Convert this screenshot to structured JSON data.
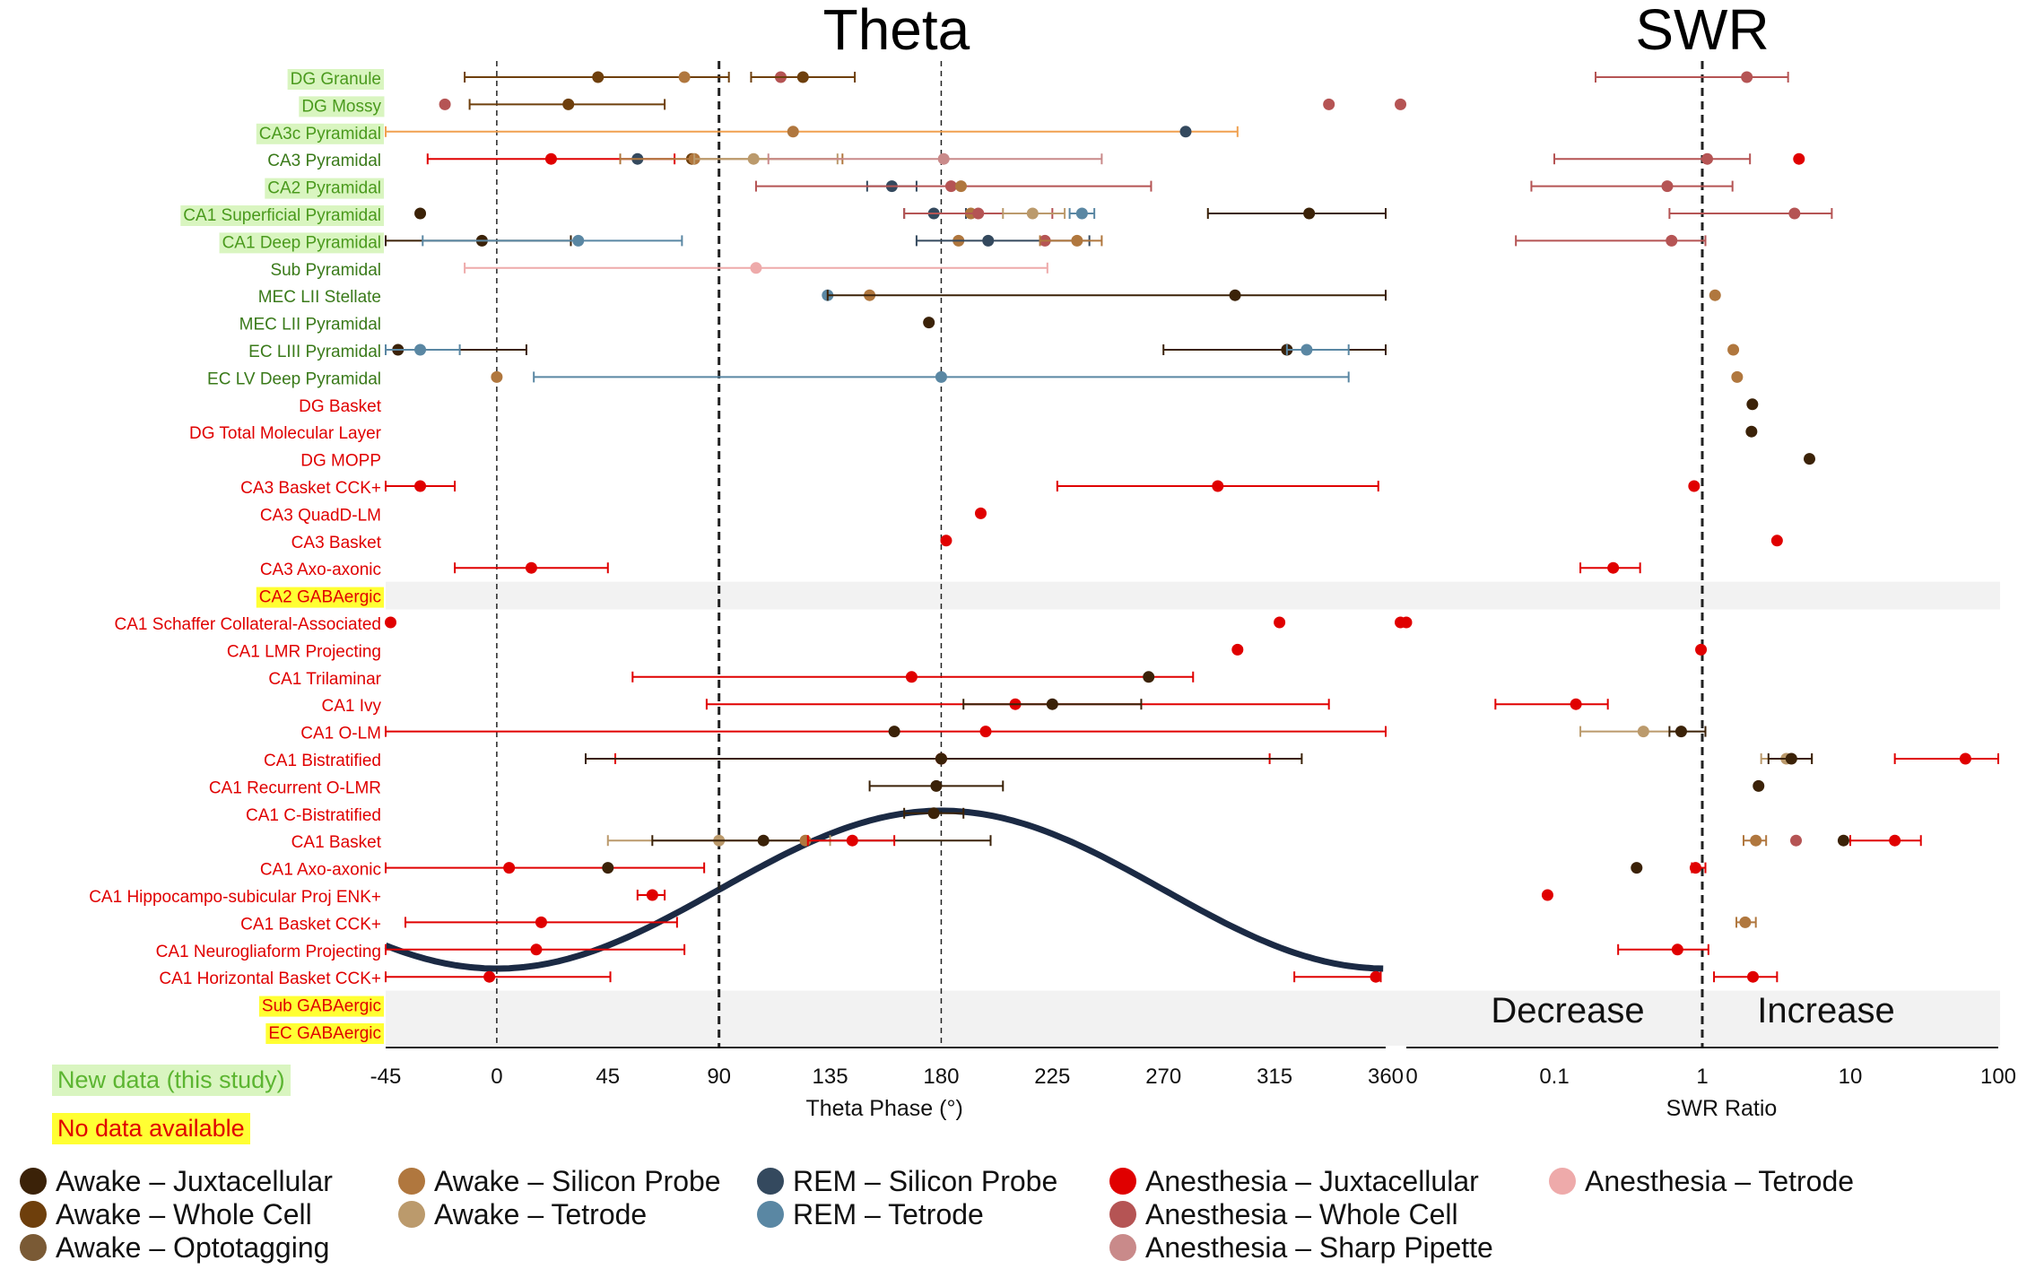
{
  "chart_data": {
    "type": "scatter",
    "panels": [
      {
        "title": "Theta",
        "xlabel": "Theta Phase (°)",
        "scale": "linear",
        "xlim": [
          -45,
          360
        ],
        "ticks": [
          "-45",
          "0",
          "45",
          "90",
          "135",
          "180",
          "225",
          "270",
          "315",
          "360"
        ],
        "reference_lines": [
          0,
          90,
          180
        ]
      },
      {
        "title": "SWR",
        "xlabel": "SWR Ratio",
        "scale": "log",
        "xlim": [
          0.01,
          100
        ],
        "ticks": [
          "0",
          "0.1",
          "1",
          "10",
          "100"
        ],
        "reference_lines": [
          1
        ],
        "annotations": [
          "Decrease",
          "Increase"
        ]
      }
    ],
    "rows": [
      {
        "label": "DG Granule",
        "category": "new"
      },
      {
        "label": "DG Mossy",
        "category": "new"
      },
      {
        "label": "CA3c Pyramidal",
        "category": "new"
      },
      {
        "label": "CA3 Pyramidal",
        "category": "principal"
      },
      {
        "label": "CA2 Pyramidal",
        "category": "new"
      },
      {
        "label": "CA1 Superficial Pyramidal",
        "category": "new"
      },
      {
        "label": "CA1 Deep Pyramidal",
        "category": "new"
      },
      {
        "label": "Sub Pyramidal",
        "category": "principal"
      },
      {
        "label": "MEC LII Stellate",
        "category": "principal"
      },
      {
        "label": "MEC LII Pyramidal",
        "category": "principal"
      },
      {
        "label": "EC LIII Pyramidal",
        "category": "principal"
      },
      {
        "label": "EC LV Deep Pyramidal",
        "category": "principal"
      },
      {
        "label": "DG Basket",
        "category": "interneuron"
      },
      {
        "label": "DG Total Molecular Layer",
        "category": "interneuron"
      },
      {
        "label": "DG MOPP",
        "category": "interneuron"
      },
      {
        "label": "CA3 Basket CCK+",
        "category": "interneuron"
      },
      {
        "label": "CA3 QuadD-LM",
        "category": "interneuron"
      },
      {
        "label": "CA3 Basket",
        "category": "interneuron"
      },
      {
        "label": "CA3 Axo-axonic",
        "category": "interneuron"
      },
      {
        "label": "CA2 GABAergic",
        "category": "nodata"
      },
      {
        "label": "CA1 Schaffer Collateral-Associated",
        "category": "interneuron"
      },
      {
        "label": "CA1 LMR Projecting",
        "category": "interneuron"
      },
      {
        "label": "CA1 Trilaminar",
        "category": "interneuron"
      },
      {
        "label": "CA1 Ivy",
        "category": "interneuron"
      },
      {
        "label": "CA1 O-LM",
        "category": "interneuron"
      },
      {
        "label": "CA1 Bistratified",
        "category": "interneuron"
      },
      {
        "label": "CA1 Recurrent O-LMR",
        "category": "interneuron"
      },
      {
        "label": "CA1 C-Bistratified",
        "category": "interneuron"
      },
      {
        "label": "CA1 Basket",
        "category": "interneuron"
      },
      {
        "label": "CA1 Axo-axonic",
        "category": "interneuron"
      },
      {
        "label": "CA1 Hippocampo-subicular Proj ENK+",
        "category": "interneuron"
      },
      {
        "label": "CA1 Basket CCK+",
        "category": "interneuron"
      },
      {
        "label": "CA1 Neurogliaform Projecting",
        "category": "interneuron"
      },
      {
        "label": "CA1 Horizontal Basket CCK+",
        "category": "interneuron"
      },
      {
        "label": "Sub GABAergic",
        "category": "nodata"
      },
      {
        "label": "EC GABAergic",
        "category": "nodata"
      }
    ],
    "series": [
      {
        "name": "Awake – Juxtacellular",
        "color": "#3b2208"
      },
      {
        "name": "Awake – Whole Cell",
        "color": "#6e3f0c"
      },
      {
        "name": "Awake – Optotagging",
        "color": "#7a5a35"
      },
      {
        "name": "Awake – Silicon Probe",
        "color": "#b0773e"
      },
      {
        "name": "Awake – Tetrode",
        "color": "#bb9a6c"
      },
      {
        "name": "REM – Silicon Probe",
        "color": "#34495e"
      },
      {
        "name": "REM – Tetrode",
        "color": "#5a87a3"
      },
      {
        "name": "Anesthesia – Juxtacellular",
        "color": "#e00000"
      },
      {
        "name": "Anesthesia – Whole Cell",
        "color": "#b55454"
      },
      {
        "name": "Anesthesia – Sharp Pipette",
        "color": "#c98a8a"
      },
      {
        "name": "Anesthesia – Tetrode",
        "color": "#eeaaaa"
      }
    ],
    "theta_points": [
      {
        "row": 0,
        "series": "Awake – Whole Cell",
        "x": 41,
        "lo": -13,
        "hi": 94
      },
      {
        "row": 0,
        "series": "Awake – Silicon Probe",
        "x": 76
      },
      {
        "row": 0,
        "series": "Anesthesia – Whole Cell",
        "x": 115
      },
      {
        "row": 0,
        "series": "Awake – Whole Cell",
        "x": 124,
        "lo": 103,
        "hi": 145
      },
      {
        "row": 1,
        "series": "Anesthesia – Whole Cell",
        "x": -21
      },
      {
        "row": 1,
        "series": "Awake – Whole Cell",
        "x": 29,
        "lo": -11,
        "hi": 68
      },
      {
        "row": 1,
        "series": "Anesthesia – Whole Cell",
        "x": 337
      },
      {
        "row": 1,
        "series": "Anesthesia – Whole Cell",
        "x": 366
      },
      {
        "row": 2,
        "series": "Awake – Silicon Probe",
        "x": 120,
        "lo": -45,
        "hi": 300,
        "errcolor": "#f0a050"
      },
      {
        "row": 2,
        "series": "REM – Silicon Probe",
        "x": 279
      },
      {
        "row": 3,
        "series": "Anesthesia – Juxtacellular",
        "x": 22,
        "lo": -28,
        "hi": 72
      },
      {
        "row": 3,
        "series": "REM – Silicon Probe",
        "x": 57
      },
      {
        "row": 3,
        "series": "Awake – Whole Cell",
        "x": 79
      },
      {
        "row": 3,
        "series": "Awake – Silicon Probe",
        "x": 80,
        "lo": 50,
        "hi": 140
      },
      {
        "row": 3,
        "series": "Awake – Tetrode",
        "x": 104,
        "lo": 80,
        "hi": 138
      },
      {
        "row": 3,
        "series": "Anesthesia – Sharp Pipette",
        "x": 181,
        "lo": 110,
        "hi": 245
      },
      {
        "row": 4,
        "series": "REM – Silicon Probe",
        "x": 160,
        "lo": 150,
        "hi": 170
      },
      {
        "row": 4,
        "series": "Anesthesia – Whole Cell",
        "x": 184,
        "lo": 105,
        "hi": 265
      },
      {
        "row": 4,
        "series": "Awake – Silicon Probe",
        "x": 188
      },
      {
        "row": 5,
        "series": "Awake – Juxtacellular",
        "x": -31
      },
      {
        "row": 5,
        "series": "REM – Silicon Probe",
        "x": 177,
        "lo": 165,
        "hi": 190
      },
      {
        "row": 5,
        "series": "Awake – Silicon Probe",
        "x": 192
      },
      {
        "row": 5,
        "series": "Anesthesia – Whole Cell",
        "x": 195,
        "lo": 165,
        "hi": 225
      },
      {
        "row": 5,
        "series": "Awake – Tetrode",
        "x": 217,
        "lo": 205,
        "hi": 230
      },
      {
        "row": 5,
        "series": "REM – Tetrode",
        "x": 237,
        "lo": 232,
        "hi": 242
      },
      {
        "row": 5,
        "series": "Awake – Juxtacellular",
        "x": 329,
        "lo": 288,
        "hi": 360
      },
      {
        "row": 6,
        "series": "Awake – Juxtacellular",
        "x": -6,
        "lo": -45,
        "hi": 30
      },
      {
        "row": 6,
        "series": "REM – Tetrode",
        "x": 33,
        "lo": -30,
        "hi": 75
      },
      {
        "row": 6,
        "series": "Awake – Silicon Probe",
        "x": 187
      },
      {
        "row": 6,
        "series": "REM – Silicon Probe",
        "x": 199,
        "lo": 170,
        "hi": 240
      },
      {
        "row": 6,
        "series": "Anesthesia – Whole Cell",
        "x": 222
      },
      {
        "row": 6,
        "series": "Awake – Silicon Probe",
        "x": 235,
        "lo": 220,
        "hi": 245
      },
      {
        "row": 7,
        "series": "Anesthesia – Tetrode",
        "x": 105,
        "lo": -13,
        "hi": 223
      },
      {
        "row": 8,
        "series": "REM – Tetrode",
        "x": 134
      },
      {
        "row": 8,
        "series": "Awake – Silicon Probe",
        "x": 151
      },
      {
        "row": 8,
        "series": "Awake – Juxtacellular",
        "x": 299,
        "lo": 134,
        "hi": 360
      },
      {
        "row": 9,
        "series": "Awake – Juxtacellular",
        "x": 175
      },
      {
        "row": 10,
        "series": "Awake – Juxtacellular",
        "x": -40,
        "lo": -45,
        "hi": 12
      },
      {
        "row": 10,
        "series": "REM – Tetrode",
        "x": -31,
        "lo": -45,
        "hi": -15
      },
      {
        "row": 10,
        "series": "Awake – Juxtacellular",
        "x": 320,
        "lo": 270,
        "hi": 360
      },
      {
        "row": 10,
        "series": "REM – Tetrode",
        "x": 328,
        "lo": 320,
        "hi": 345
      },
      {
        "row": 11,
        "series": "Awake – Silicon Probe",
        "x": 0
      },
      {
        "row": 11,
        "series": "REM – Tetrode",
        "x": 180,
        "lo": 15,
        "hi": 345
      },
      {
        "row": 15,
        "series": "Anesthesia – Juxtacellular",
        "x": -31,
        "lo": -45,
        "hi": -17
      },
      {
        "row": 15,
        "series": "Anesthesia – Juxtacellular",
        "x": 292,
        "lo": 227,
        "hi": 357
      },
      {
        "row": 16,
        "series": "Anesthesia – Juxtacellular",
        "x": 196
      },
      {
        "row": 17,
        "series": "Anesthesia – Juxtacellular",
        "x": 182
      },
      {
        "row": 18,
        "series": "Anesthesia – Juxtacellular",
        "x": 14,
        "lo": -17,
        "hi": 45
      },
      {
        "row": 20,
        "series": "Anesthesia – Juxtacellular",
        "x": -43
      },
      {
        "row": 20,
        "series": "Anesthesia – Juxtacellular",
        "x": 317
      },
      {
        "row": 20,
        "series": "Anesthesia – Juxtacellular",
        "x": 366
      },
      {
        "row": 21,
        "series": "Anesthesia – Juxtacellular",
        "x": 300
      },
      {
        "row": 22,
        "series": "Anesthesia – Juxtacellular",
        "x": 168,
        "lo": 55,
        "hi": 282
      },
      {
        "row": 22,
        "series": "Awake – Juxtacellular",
        "x": 264
      },
      {
        "row": 23,
        "series": "Anesthesia – Juxtacellular",
        "x": 210,
        "lo": 85,
        "hi": 337
      },
      {
        "row": 23,
        "series": "Awake – Juxtacellular",
        "x": 225,
        "lo": 189,
        "hi": 261
      },
      {
        "row": 24,
        "series": "Anesthesia – Juxtacellular",
        "x": 198,
        "lo": -45,
        "hi": 360
      },
      {
        "row": 24,
        "series": "Awake – Juxtacellular",
        "x": 161
      },
      {
        "row": 25,
        "series": "Anesthesia – Juxtacellular",
        "x": 180,
        "lo": 48,
        "hi": 313
      },
      {
        "row": 25,
        "series": "Awake – Juxtacellular",
        "x": 180,
        "lo": 36,
        "hi": 326
      },
      {
        "row": 26,
        "series": "Awake – Juxtacellular",
        "x": 178,
        "lo": 151,
        "hi": 205
      },
      {
        "row": 27,
        "series": "Awake – Juxtacellular",
        "x": 177,
        "lo": 165,
        "hi": 189
      },
      {
        "row": 28,
        "series": "Awake – Tetrode",
        "x": 90,
        "lo": 45,
        "hi": 135
      },
      {
        "row": 28,
        "series": "Awake – Juxtacellular",
        "x": 108,
        "lo": 63,
        "hi": 200
      },
      {
        "row": 28,
        "series": "Awake – Silicon Probe",
        "x": 125
      },
      {
        "row": 28,
        "series": "Anesthesia – Juxtacellular",
        "x": 144,
        "lo": 126,
        "hi": 161
      },
      {
        "row": 29,
        "series": "Anesthesia – Juxtacellular",
        "x": 5,
        "lo": -45,
        "hi": 84
      },
      {
        "row": 29,
        "series": "Awake – Juxtacellular",
        "x": 45
      },
      {
        "row": 30,
        "series": "Anesthesia – Juxtacellular",
        "x": 63,
        "lo": 57,
        "hi": 68
      },
      {
        "row": 31,
        "series": "Anesthesia – Juxtacellular",
        "x": 18,
        "lo": -37,
        "hi": 73
      },
      {
        "row": 32,
        "series": "Anesthesia – Juxtacellular",
        "x": 16,
        "lo": -45,
        "hi": 76
      },
      {
        "row": 33,
        "series": "Anesthesia – Juxtacellular",
        "x": -3,
        "lo": -45,
        "hi": 46
      },
      {
        "row": 33,
        "series": "Anesthesia – Juxtacellular",
        "x": 356,
        "lo": 323,
        "hi": 358
      }
    ],
    "swr_points": [
      {
        "row": 0,
        "series": "Anesthesia – Whole Cell",
        "x": 2.0,
        "lo": 0.19,
        "hi": 3.8
      },
      {
        "row": 3,
        "series": "Anesthesia – Whole Cell",
        "x": 1.08,
        "lo": 0.1,
        "hi": 2.1
      },
      {
        "row": 3,
        "series": "Anesthesia – Juxtacellular",
        "x": 4.5
      },
      {
        "row": 4,
        "series": "Anesthesia – Whole Cell",
        "x": 0.58,
        "lo": 0.07,
        "hi": 1.6
      },
      {
        "row": 5,
        "series": "Anesthesia – Whole Cell",
        "x": 4.2,
        "lo": 0.6,
        "hi": 7.5
      },
      {
        "row": 6,
        "series": "Anesthesia – Whole Cell",
        "x": 0.62,
        "lo": 0.055,
        "hi": 1.05
      },
      {
        "row": 8,
        "series": "Awake – Silicon Probe",
        "x": 1.22
      },
      {
        "row": 10,
        "series": "Awake – Silicon Probe",
        "x": 1.62
      },
      {
        "row": 11,
        "series": "Awake – Silicon Probe",
        "x": 1.72
      },
      {
        "row": 12,
        "series": "Awake – Juxtacellular",
        "x": 2.18
      },
      {
        "row": 13,
        "series": "Awake – Juxtacellular",
        "x": 2.15
      },
      {
        "row": 14,
        "series": "Awake – Juxtacellular",
        "x": 5.3
      },
      {
        "row": 15,
        "series": "Anesthesia – Juxtacellular",
        "x": 0.88
      },
      {
        "row": 17,
        "series": "Anesthesia – Juxtacellular",
        "x": 3.2
      },
      {
        "row": 18,
        "series": "Anesthesia – Juxtacellular",
        "x": 0.25,
        "lo": 0.15,
        "hi": 0.38
      },
      {
        "row": 20,
        "series": "Anesthesia – Juxtacellular",
        "x": 0.01
      },
      {
        "row": 21,
        "series": "Anesthesia – Juxtacellular",
        "x": 0.98
      },
      {
        "row": 23,
        "series": "Anesthesia – Juxtacellular",
        "x": 0.14,
        "lo": 0.04,
        "hi": 0.23
      },
      {
        "row": 24,
        "series": "Awake – Tetrode",
        "x": 0.4,
        "lo": 0.15,
        "hi": 0.7
      },
      {
        "row": 24,
        "series": "Awake – Juxtacellular",
        "x": 0.72,
        "lo": 0.6,
        "hi": 1.05
      },
      {
        "row": 25,
        "series": "Awake – Tetrode",
        "x": 3.7,
        "lo": 2.5,
        "hi": 5.5
      },
      {
        "row": 25,
        "series": "Awake – Juxtacellular",
        "x": 4.0,
        "lo": 2.8,
        "hi": 5.5
      },
      {
        "row": 25,
        "series": "Anesthesia – Juxtacellular",
        "x": 60,
        "lo": 20,
        "hi": 100
      },
      {
        "row": 26,
        "series": "Awake – Juxtacellular",
        "x": 2.4
      },
      {
        "row": 28,
        "series": "Awake – Silicon Probe",
        "x": 2.3,
        "lo": 1.9,
        "hi": 2.7
      },
      {
        "row": 28,
        "series": "Anesthesia – Whole Cell",
        "x": 4.3
      },
      {
        "row": 28,
        "series": "Awake – Juxtacellular",
        "x": 9.0
      },
      {
        "row": 28,
        "series": "Anesthesia – Juxtacellular",
        "x": 20,
        "lo": 10,
        "hi": 30
      },
      {
        "row": 29,
        "series": "Awake – Juxtacellular",
        "x": 0.36
      },
      {
        "row": 29,
        "series": "Anesthesia – Juxtacellular",
        "x": 0.9,
        "lo": 0.85,
        "hi": 1.05
      },
      {
        "row": 30,
        "series": "Anesthesia – Juxtacellular",
        "x": 0.09
      },
      {
        "row": 31,
        "series": "Awake – Silicon Probe",
        "x": 1.95,
        "lo": 1.7,
        "hi": 2.3
      },
      {
        "row": 32,
        "series": "Anesthesia – Juxtacellular",
        "x": 0.68,
        "lo": 0.27,
        "hi": 1.1
      },
      {
        "row": 33,
        "series": "Anesthesia – Juxtacellular",
        "x": 2.2,
        "lo": 1.2,
        "hi": 3.2
      }
    ],
    "key": {
      "new_data": "New data (this study)",
      "no_data": "No data available"
    }
  }
}
